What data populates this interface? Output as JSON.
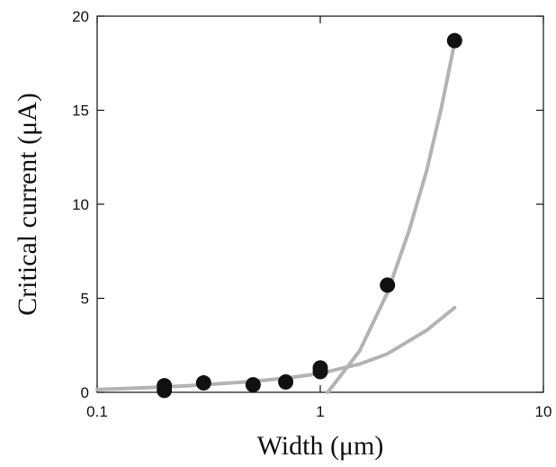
{
  "chart_data": {
    "type": "scatter",
    "title": "",
    "xlabel": "Width (μm)",
    "ylabel": "Critical current (μA)",
    "x_scale": "log",
    "xlim": [
      0.1,
      10
    ],
    "ylim": [
      0,
      20
    ],
    "x_ticks": [
      {
        "value": 0.1,
        "label": "0.1"
      },
      {
        "value": 1,
        "label": "1"
      },
      {
        "value": 10,
        "label": "10"
      }
    ],
    "y_ticks": [
      {
        "value": 0,
        "label": "0"
      },
      {
        "value": 5,
        "label": "5"
      },
      {
        "value": 10,
        "label": "10"
      },
      {
        "value": 15,
        "label": "15"
      },
      {
        "value": 20,
        "label": "20"
      }
    ],
    "grid": false,
    "legend": "none",
    "series": [
      {
        "kind": "points",
        "color": "#111111",
        "points": [
          {
            "x": 0.2,
            "y": 0.1
          },
          {
            "x": 0.2,
            "y": 0.35
          },
          {
            "x": 0.3,
            "y": 0.5
          },
          {
            "x": 0.5,
            "y": 0.4
          },
          {
            "x": 0.7,
            "y": 0.55
          },
          {
            "x": 1.0,
            "y": 1.1
          },
          {
            "x": 1.0,
            "y": 1.3
          },
          {
            "x": 2.0,
            "y": 5.7
          },
          {
            "x": 4.0,
            "y": 18.7
          }
        ]
      },
      {
        "kind": "fit-line",
        "color": "#b3b3b3",
        "points": [
          {
            "x": 0.1,
            "y": 0.15
          },
          {
            "x": 0.2,
            "y": 0.28
          },
          {
            "x": 0.3,
            "y": 0.4
          },
          {
            "x": 0.5,
            "y": 0.58
          },
          {
            "x": 0.7,
            "y": 0.75
          },
          {
            "x": 1.0,
            "y": 1.0
          },
          {
            "x": 1.5,
            "y": 1.5
          },
          {
            "x": 2.0,
            "y": 2.05
          },
          {
            "x": 3.0,
            "y": 3.3
          },
          {
            "x": 4.0,
            "y": 4.5
          }
        ]
      },
      {
        "kind": "fit-line",
        "color": "#b3b3b3",
        "points": [
          {
            "x": 1.08,
            "y": 0.0
          },
          {
            "x": 1.2,
            "y": 0.7
          },
          {
            "x": 1.5,
            "y": 2.2
          },
          {
            "x": 2.0,
            "y": 5.3
          },
          {
            "x": 2.5,
            "y": 8.6
          },
          {
            "x": 3.0,
            "y": 11.8
          },
          {
            "x": 3.5,
            "y": 15.2
          },
          {
            "x": 4.0,
            "y": 18.6
          }
        ]
      }
    ]
  }
}
